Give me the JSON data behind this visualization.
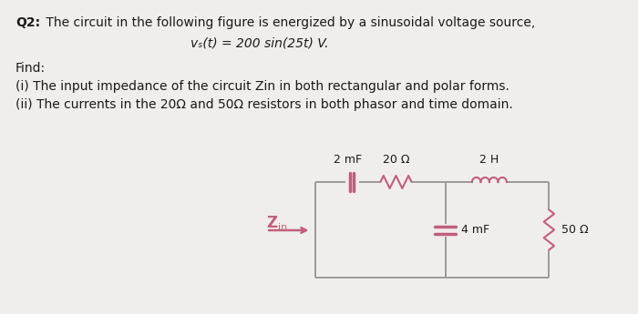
{
  "bg_color": "#f0eeeb",
  "circuit_color": "#c0607a",
  "wire_color": "#9a9a9a",
  "text_color": "#1a1a1a",
  "title_bold": "Q2:",
  "title_text": " The circuit in the following figure is energized by a sinusoidal voltage source,",
  "equation": "vₛ(t) = 200 sin(25t) V.",
  "find_label": "Find:",
  "item_i": "(i) The input impedance of the circuit Zin in both rectangular and polar forms.",
  "item_ii": "(ii) The currents in the 20Ω and 50Ω resistors in both phasor and time domain.",
  "label_2mF": "2 mF",
  "label_20ohm": "20 Ω",
  "label_2H": "2 H",
  "label_4mF": "4 mF",
  "label_50ohm": "50 Ω",
  "label_Zin": "Z",
  "label_Zin_sub": "in"
}
